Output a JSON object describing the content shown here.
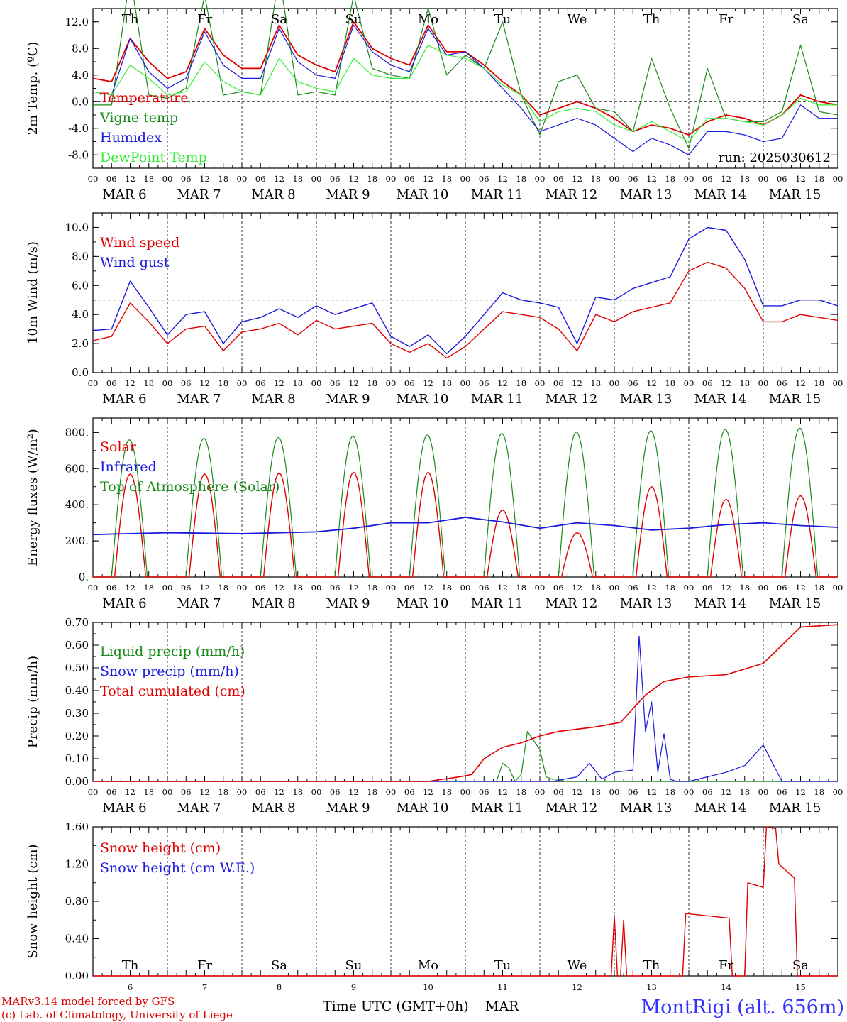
{
  "footer": {
    "model": "MARv3.14 model forced by GFS",
    "lab": "(c) Lab. of Climatology, University of Liege",
    "time_label": "Time UTC (GMT+0h)",
    "month": "MAR",
    "station": "MontRigi (alt. 656m)"
  },
  "colors": {
    "red": "#e00000",
    "green": "#1a8a1a",
    "blue": "#1a1adc",
    "lightgreen": "#33ee33"
  },
  "chart_data": [
    {
      "id": "temp",
      "type": "line",
      "ylabel": "2m Temp. (ºC)",
      "ylim": [
        -10,
        14
      ],
      "yticks": [
        "12.0",
        "8.0",
        "4.0",
        "0.0",
        "-4.0",
        "-8.0"
      ],
      "yticks_values": [
        12,
        8,
        4,
        0,
        -4,
        -8
      ],
      "ref_line": 0,
      "run": "run: 2025030612",
      "day_names": [
        {
          "label": "Th",
          "color": "#000"
        },
        {
          "label": "Fr",
          "color": "#000"
        },
        {
          "label": "Sa",
          "color": "#e00000"
        },
        {
          "label": "Su",
          "color": "#e00000"
        },
        {
          "label": "Mo",
          "color": "#000"
        },
        {
          "label": "Tu",
          "color": "#000"
        },
        {
          "label": "We",
          "color": "#000"
        },
        {
          "label": "Th",
          "color": "#000"
        },
        {
          "label": "Fr",
          "color": "#000"
        },
        {
          "label": "Sa",
          "color": "#e00000"
        }
      ],
      "x_hours": [
        0,
        6,
        12,
        18,
        24,
        30,
        36,
        42,
        48,
        54,
        60,
        66,
        72,
        78,
        84,
        90,
        96,
        102,
        108,
        114,
        120,
        126,
        132,
        138,
        144,
        150,
        156,
        162,
        168,
        174,
        180,
        186,
        192,
        198,
        204,
        210,
        216,
        222,
        228,
        234,
        240
      ],
      "series": [
        {
          "name": "Temperature",
          "color": "#e00000",
          "values": [
            3.5,
            3.0,
            9.5,
            6.0,
            3.5,
            4.5,
            11.0,
            7.0,
            5.0,
            5.0,
            11.5,
            7.0,
            5.5,
            4.5,
            12.0,
            8.0,
            6.5,
            5.5,
            11.5,
            7.5,
            7.5,
            5.5,
            3.0,
            1.0,
            -2.0,
            -1.0,
            0.0,
            -1.0,
            -2.5,
            -4.5,
            -3.5,
            -4.0,
            -5.0,
            -3.0,
            -2.0,
            -2.5,
            -3.5,
            -2.0,
            1.0,
            0.0,
            -0.5
          ]
        },
        {
          "name": "Vigne temp",
          "color": "#1a8a1a",
          "values": [
            -0.5,
            -0.5,
            19,
            1,
            0.5,
            2,
            16,
            1,
            1.5,
            1,
            19,
            1,
            1.5,
            1,
            16,
            5,
            4,
            3.5,
            14,
            4,
            7,
            5,
            12,
            1,
            -5,
            3,
            4,
            -1,
            -1.5,
            -4.5,
            6.5,
            -1,
            -7,
            5,
            -2.5,
            -3,
            -3,
            -1.5,
            8.5,
            -1.5,
            -2
          ]
        },
        {
          "name": "Humidex",
          "color": "#1a1adc",
          "values": [
            1.5,
            1.0,
            9.5,
            4.5,
            2.0,
            3.5,
            10.5,
            5.5,
            3.5,
            3.5,
            11.0,
            6.0,
            4.0,
            3.5,
            11.5,
            7.5,
            5.5,
            4.5,
            11.0,
            7.0,
            7.5,
            5.0,
            2.0,
            -1.0,
            -4.5,
            -3.5,
            -2.5,
            -3.5,
            -5.5,
            -7.5,
            -5.5,
            -6.5,
            -8.0,
            -4.5,
            -4.5,
            -5.0,
            -6.0,
            -5.5,
            -0.5,
            -2.5,
            -2.5
          ]
        },
        {
          "name": "DewPoint Temp",
          "color": "#33ee33",
          "values": [
            1.5,
            1.0,
            5.5,
            3.5,
            1.0,
            1.5,
            6.0,
            3.0,
            1.5,
            1.0,
            6.5,
            3.0,
            2.0,
            1.5,
            6.5,
            4.0,
            3.5,
            3.5,
            8.5,
            7.0,
            6.5,
            5.0,
            2.5,
            1.0,
            -3.0,
            -1.5,
            -1.0,
            -1.5,
            -3.5,
            -4.5,
            -3.0,
            -4.5,
            -6.0,
            -2.5,
            -2.5,
            -3.0,
            -3.5,
            -2.0,
            0.5,
            -0.5,
            -0.5
          ]
        }
      ]
    },
    {
      "id": "wind",
      "type": "line",
      "ylabel": "10m Wind (m/s)",
      "ylim": [
        0,
        11
      ],
      "yticks": [
        "10.0",
        "8.0",
        "6.0",
        "4.0",
        "2.0",
        "0.0"
      ],
      "yticks_values": [
        10,
        8,
        6,
        4,
        2,
        0
      ],
      "ref_line": 5,
      "x_hours": [
        0,
        6,
        12,
        18,
        24,
        30,
        36,
        42,
        48,
        54,
        60,
        66,
        72,
        78,
        84,
        90,
        96,
        102,
        108,
        114,
        120,
        126,
        132,
        138,
        144,
        150,
        156,
        162,
        168,
        174,
        180,
        186,
        192,
        198,
        204,
        210,
        216,
        222,
        228,
        234,
        240
      ],
      "series": [
        {
          "name": "Wind speed",
          "color": "#e00000",
          "values": [
            2.2,
            2.5,
            4.8,
            3.5,
            2.0,
            3.0,
            3.2,
            1.5,
            2.8,
            3.0,
            3.4,
            2.6,
            3.6,
            3.0,
            3.2,
            3.4,
            2.0,
            1.4,
            2.0,
            1.0,
            1.8,
            3.0,
            4.2,
            4.0,
            3.8,
            3.0,
            1.5,
            4.0,
            3.5,
            4.2,
            4.5,
            4.8,
            7.0,
            7.6,
            7.2,
            5.8,
            3.5,
            3.5,
            4.0,
            3.8,
            3.6
          ]
        },
        {
          "name": "Wind gust",
          "color": "#1a1adc",
          "values": [
            2.9,
            3.0,
            6.3,
            4.5,
            2.6,
            4.0,
            4.2,
            2.0,
            3.5,
            3.8,
            4.4,
            3.8,
            4.6,
            4.0,
            4.4,
            4.8,
            2.5,
            1.8,
            2.6,
            1.3,
            2.5,
            4.0,
            5.5,
            5.0,
            4.8,
            4.5,
            2.0,
            5.2,
            5.0,
            5.8,
            6.2,
            6.6,
            9.2,
            10.0,
            9.8,
            7.8,
            4.6,
            4.6,
            5.0,
            5.0,
            4.6
          ]
        }
      ]
    },
    {
      "id": "energy",
      "type": "line",
      "ylabel": "Energy fluxes (W/m²)",
      "ylim": [
        0,
        880
      ],
      "yticks": [
        "800.",
        "600.",
        "400.",
        "200.",
        "0."
      ],
      "yticks_values": [
        800,
        600,
        400,
        200,
        0
      ],
      "solar_peaks": [
        570,
        570,
        575,
        580,
        580,
        370,
        245,
        500,
        430,
        450
      ],
      "toa_peaks": [
        760,
        768,
        773,
        780,
        787,
        795,
        803,
        810,
        818,
        825
      ],
      "infrared": {
        "x_hours": [
          0,
          24,
          48,
          72,
          84,
          96,
          108,
          120,
          132,
          144,
          156,
          168,
          180,
          192,
          204,
          216,
          228,
          240
        ],
        "values": [
          235,
          245,
          240,
          250,
          270,
          300,
          300,
          330,
          305,
          270,
          300,
          285,
          260,
          270,
          290,
          300,
          285,
          275
        ]
      },
      "series": [
        {
          "name": "Solar",
          "color": "#e00000"
        },
        {
          "name": "Infrared",
          "color": "#1a1adc"
        },
        {
          "name": "Top of Atmosphere (Solar)",
          "color": "#1a8a1a"
        }
      ]
    },
    {
      "id": "precip",
      "type": "line",
      "ylabel": "Precip (mm/h)",
      "ylim": [
        0,
        0.7
      ],
      "yticks": [
        "0.70",
        "0.60",
        "0.50",
        "0.40",
        "0.30",
        "0.20",
        "0.10",
        "0.00"
      ],
      "yticks_values": [
        0.7,
        0.6,
        0.5,
        0.4,
        0.3,
        0.2,
        0.1,
        0
      ],
      "liquid": {
        "x_hours": [
          0,
          130,
          132,
          134,
          136,
          138,
          140,
          144,
          146,
          148,
          150,
          152,
          154,
          156,
          158,
          160,
          240
        ],
        "values": [
          0,
          0,
          0.08,
          0.06,
          0,
          0.03,
          0.22,
          0.14,
          0.02,
          0.01,
          0.01,
          0,
          0,
          0,
          0,
          0,
          0
        ]
      },
      "snow": {
        "x_hours": [
          0,
          148,
          156,
          160,
          164,
          168,
          174,
          176,
          178,
          180,
          182,
          184,
          186,
          188,
          190,
          192,
          204,
          210,
          216,
          222,
          228,
          240
        ],
        "values": [
          0,
          0,
          0.02,
          0.08,
          0.01,
          0.04,
          0.05,
          0.64,
          0.22,
          0.35,
          0.04,
          0.21,
          0.01,
          0.0,
          0.0,
          0.0,
          0.04,
          0.07,
          0.16,
          0.0,
          0.0,
          0.0
        ]
      },
      "total": {
        "x_hours": [
          0,
          108,
          118,
          122,
          126,
          132,
          138,
          144,
          150,
          162,
          170,
          176,
          178,
          180,
          184,
          192,
          204,
          216,
          222,
          228,
          240
        ],
        "values": [
          0,
          0,
          0.02,
          0.03,
          0.1,
          0.15,
          0.17,
          0.2,
          0.22,
          0.24,
          0.26,
          0.35,
          0.38,
          0.4,
          0.44,
          0.46,
          0.47,
          0.52,
          0.6,
          0.68,
          0.69
        ]
      },
      "series": [
        {
          "name": "Liquid precip (mm/h)",
          "color": "#1a8a1a"
        },
        {
          "name": "Snow precip (mm/h)",
          "color": "#1a1adc"
        },
        {
          "name": "Total cumulated (cm)",
          "color": "#e00000"
        }
      ]
    },
    {
      "id": "snow",
      "type": "line",
      "ylabel": "Snow height (cm)",
      "ylim": [
        0,
        1.6
      ],
      "yticks": [
        "1.60",
        "1.20",
        "0.80",
        "0.40",
        "0.00"
      ],
      "yticks_values": [
        1.6,
        1.2,
        0.8,
        0.4,
        0
      ],
      "height": {
        "x_hours": [
          0,
          166,
          167,
          168,
          169,
          170,
          171,
          172,
          173,
          180,
          190,
          191,
          205,
          206,
          210,
          211,
          216,
          217,
          220,
          221,
          226,
          227,
          232,
          233,
          234,
          235,
          236,
          240
        ],
        "values": [
          0,
          0,
          0,
          0.65,
          0,
          0,
          0.6,
          0,
          0,
          0,
          0,
          0.67,
          0.62,
          0,
          0,
          1.0,
          0.95,
          1.6,
          1.58,
          1.2,
          1.05,
          0,
          0,
          0,
          0,
          0,
          0,
          0
        ]
      },
      "series": [
        {
          "name": "Snow height (cm)",
          "color": "#e00000"
        },
        {
          "name": "Snow height (cm W.E.)",
          "color": "#1a1adc"
        }
      ],
      "day_names": [
        "Th",
        "Fr",
        "Sa",
        "Su",
        "Mo",
        "Tu",
        "We",
        "Th",
        "Fr",
        "Sa"
      ],
      "day_numbers": [
        "6",
        "7",
        "8",
        "9",
        "10",
        "11",
        "12",
        "13",
        "14",
        "15"
      ]
    }
  ],
  "axis": {
    "hour_labels": [
      "00",
      "06",
      "12",
      "18"
    ],
    "end_label": "00",
    "dates": [
      "MAR  6",
      "MAR  7",
      "MAR  8",
      "MAR  9",
      "MAR 10",
      "MAR 11",
      "MAR 12",
      "MAR 13",
      "MAR 14",
      "MAR 15"
    ]
  }
}
